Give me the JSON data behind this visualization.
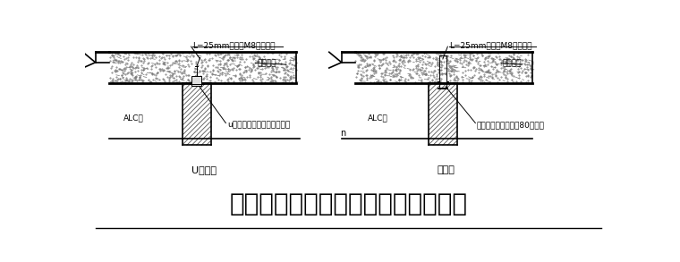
{
  "bg_color": "#ffffff",
  "line_color": "#000000",
  "title": "混凝土结构内墙墙顶与主体连接构造",
  "title_fontsize": 20,
  "left_label": "U字卡法",
  "right_label": "管卡法",
  "left_annot1": "L=25mm射钉或M8膨胀螺栓",
  "right_annot1": "L=25mm射钉或M8膨胀螺栓",
  "left_annot2": "架成楼板",
  "right_annot2": "架成楼板",
  "left_annot3": "ALC墙",
  "right_annot3": "ALC墙",
  "left_annot4": "u字卡，每两块板缝处设一个",
  "right_annot4": "管卡，每块板距板缝80设一只",
  "small_n": "n"
}
